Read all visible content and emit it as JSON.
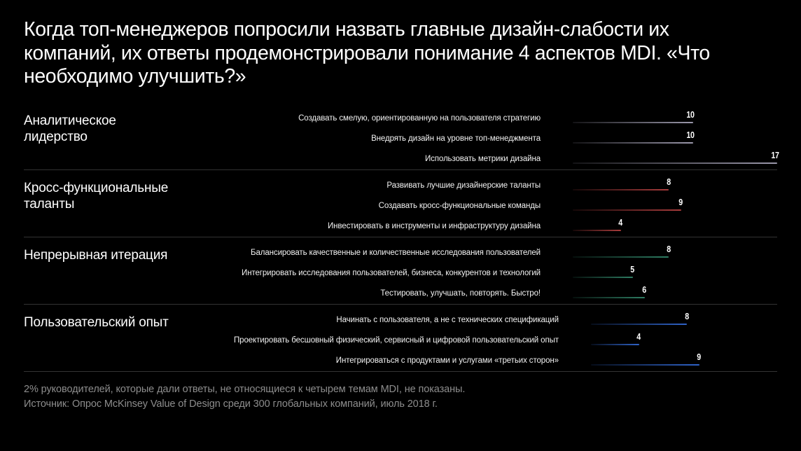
{
  "page": {
    "title": "Когда топ-менеджеров попросили назвать главные дизайн-слабости их компаний, их ответы продемонстрировали понимание 4 аспектов MDI. «Что необходимо улучшить?»",
    "footnote": "2% руководителей, которые дали ответы, не относящиеся к четырем темам MDI, не показаны.",
    "source": "Источник: Опрос McKinsey Value of Design среди 300 глобальных компаний, июль 2018 г.",
    "background_color": "#000000",
    "divider_color": "#333333",
    "footnote_color": "#8d8d8d"
  },
  "chart_data": {
    "type": "bar",
    "orientation": "horizontal",
    "value_max": 17,
    "grid": false,
    "legend": false,
    "bar_style": "thin gradient line fading from dark (left) to full color (right), value label above right end",
    "groups": [
      {
        "category": "Аналитическое лидерство",
        "color": "#9b98ab",
        "items": [
          {
            "label": "Создавать смелую, ориентированную на пользователя стратегию",
            "value": 10
          },
          {
            "label": "Внедрять дизайн на уровне топ-менеджмента",
            "value": 10
          },
          {
            "label": "Использовать метрики дизайна",
            "value": 17
          }
        ]
      },
      {
        "category": "Кросс-функциональные таланты",
        "color": "#a83c3c",
        "items": [
          {
            "label": "Развивать лучшие дизайнерские таланты",
            "value": 8
          },
          {
            "label": "Создавать кросс-функциональные команды",
            "value": 9
          },
          {
            "label": "Инвестировать в инструменты и инфраструктуру дизайна",
            "value": 4
          }
        ]
      },
      {
        "category": "Непрерывная итерация",
        "color": "#2e7d63",
        "items": [
          {
            "label": "Балансировать качественные и количественные исследования пользователей",
            "value": 8
          },
          {
            "label": "Интегрировать исследования пользователей, бизнеса, конкурентов и технологий",
            "value": 5
          },
          {
            "label": "Тестировать, улучшать, повторять. Быстро!",
            "value": 6
          }
        ]
      },
      {
        "category": "Пользовательский опыт",
        "color": "#2f63c9",
        "items": [
          {
            "label": "Начинать с пользователя, а не с технических спецификаций",
            "value": 8
          },
          {
            "label": "Проектировать бесшовный физический, сервисный и цифровой пользовательский опыт",
            "value": 4
          },
          {
            "label": "Интегрироваться с продуктами и услугами «третьих сторон»",
            "value": 9
          }
        ]
      }
    ]
  }
}
